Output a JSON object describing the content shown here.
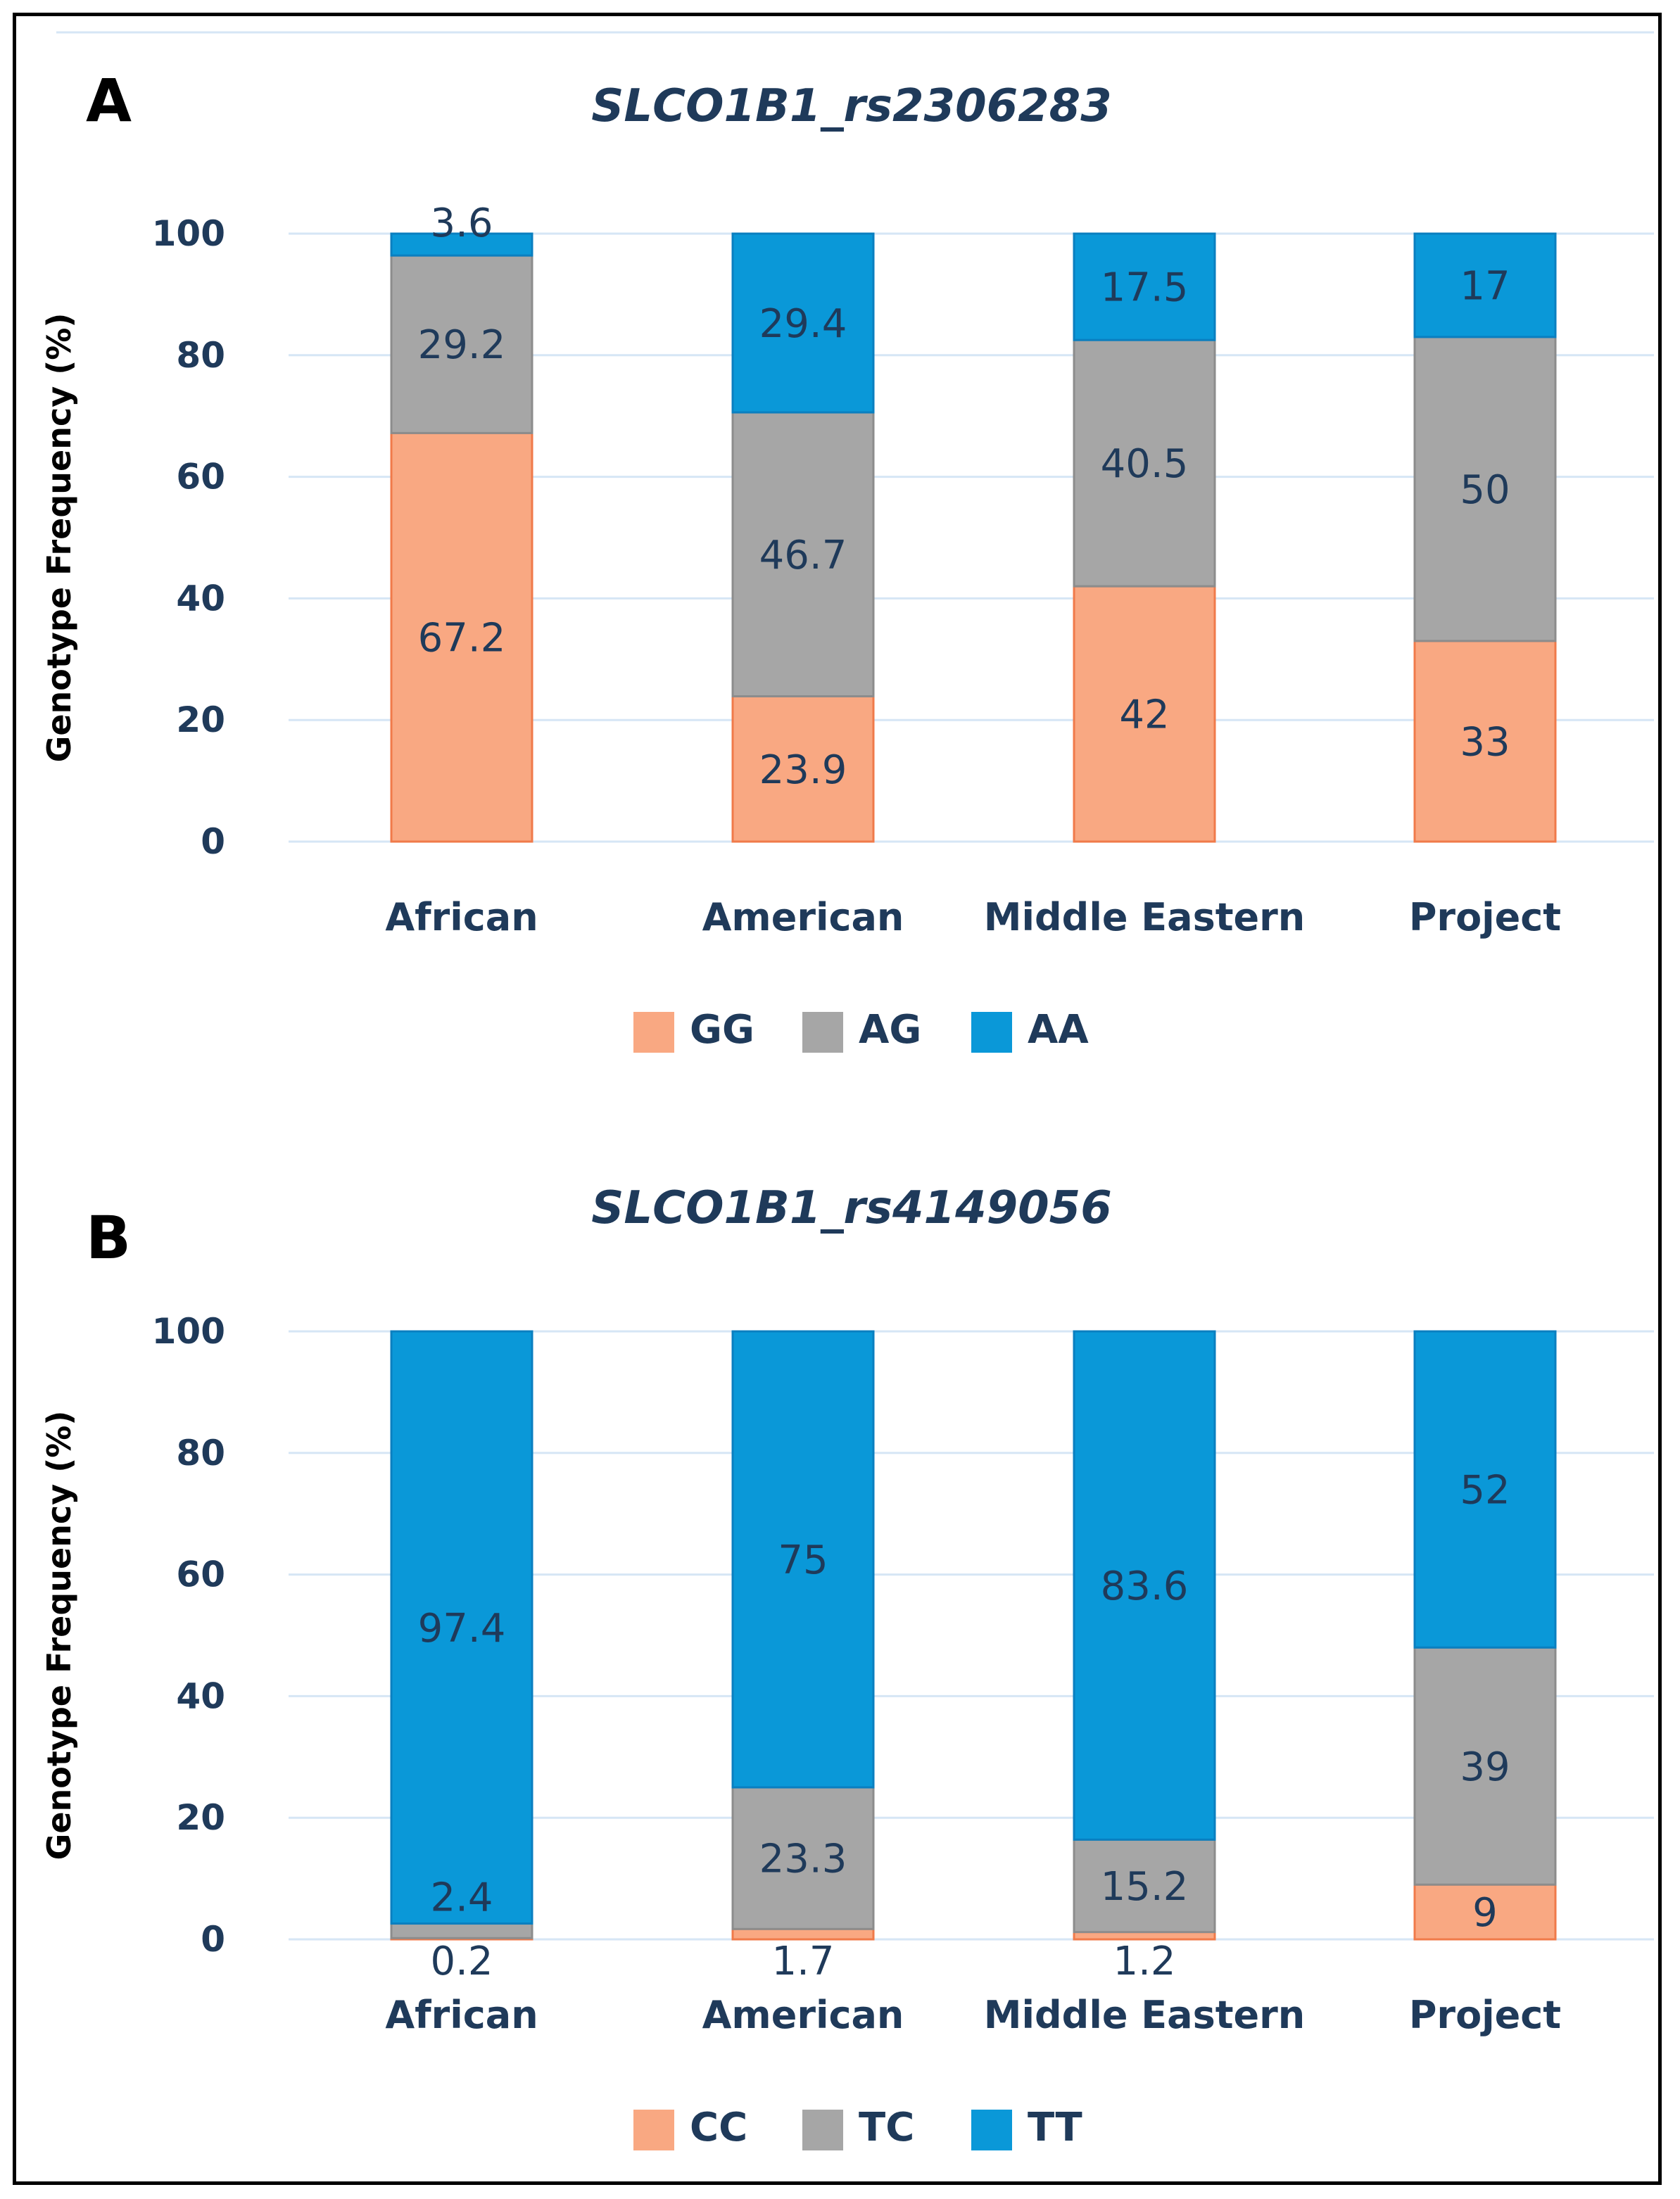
{
  "chart_data": [
    {
      "panel": "A",
      "type": "bar",
      "stacked": true,
      "title": "SLCO1B1_rs2306283",
      "ylabel": "Genotype Frequency (%)",
      "xlabel": "",
      "ylim": [
        0,
        100
      ],
      "yticks": [
        0,
        20,
        40,
        60,
        80,
        100
      ],
      "grid": true,
      "legend_position": "bottom",
      "categories": [
        "African",
        "American",
        "Middle Eastern",
        "Project"
      ],
      "series": [
        {
          "name": "GG",
          "color": "#f9a882",
          "values": [
            67.2,
            23.9,
            42,
            33
          ],
          "labels": [
            "67.2",
            "23.9",
            "42",
            "33"
          ]
        },
        {
          "name": "AG",
          "color": "#a6a6a6",
          "values": [
            29.2,
            46.7,
            40.5,
            50
          ],
          "labels": [
            "29.2",
            "46.7",
            "40.5",
            "50"
          ]
        },
        {
          "name": "AA",
          "color": "#0a98d8",
          "values": [
            3.6,
            29.4,
            17.5,
            17
          ],
          "labels": [
            "3.6",
            "29.4",
            "17.5",
            "17"
          ]
        }
      ]
    },
    {
      "panel": "B",
      "type": "bar",
      "stacked": true,
      "title": "SLCO1B1_rs4149056",
      "ylabel": "Genotype Frequency (%)",
      "xlabel": "",
      "ylim": [
        0,
        100
      ],
      "yticks": [
        0,
        20,
        40,
        60,
        80,
        100
      ],
      "grid": true,
      "legend_position": "bottom",
      "categories": [
        "African",
        "American",
        "Middle Eastern",
        "Project"
      ],
      "series": [
        {
          "name": "CC",
          "color": "#f9a882",
          "values": [
            0.2,
            1.7,
            1.2,
            9
          ],
          "labels": [
            "0.2",
            "1.7",
            "1.2",
            "9"
          ]
        },
        {
          "name": "TC",
          "color": "#a6a6a6",
          "values": [
            2.4,
            23.3,
            15.2,
            39
          ],
          "labels": [
            "2.4",
            "23.3",
            "15.2",
            "39"
          ]
        },
        {
          "name": "TT",
          "color": "#0a98d8",
          "values": [
            97.4,
            75,
            83.6,
            52
          ],
          "labels": [
            "97.4",
            "75",
            "83.6",
            "52"
          ]
        }
      ]
    }
  ]
}
